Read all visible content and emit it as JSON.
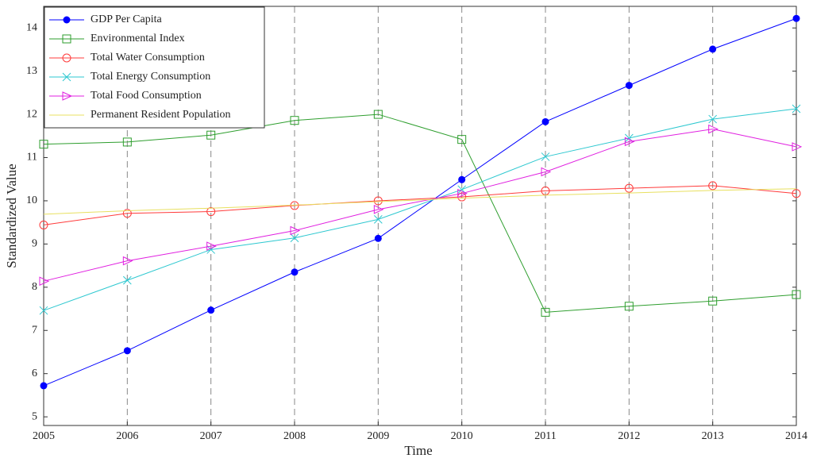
{
  "chart_data": {
    "type": "line",
    "x_label": "Time",
    "y_label": "Standardized Value",
    "x": [
      2005,
      2006,
      2007,
      2008,
      2009,
      2010,
      2011,
      2012,
      2013,
      2014
    ],
    "xlim": [
      2005,
      2014
    ],
    "xticks": [
      2005,
      2006,
      2007,
      2008,
      2009,
      2010,
      2011,
      2012,
      2013,
      2014
    ],
    "ylim": [
      4.8,
      14.5
    ],
    "yticks": [
      5,
      6,
      7,
      8,
      9,
      10,
      11,
      12,
      13,
      14
    ],
    "grid": true,
    "legend": "upper left",
    "series": [
      {
        "name": "GDP Per Capita",
        "color": "#0000ff",
        "marker": "filled-circle",
        "values": [
          5.72,
          6.53,
          7.47,
          8.35,
          9.13,
          10.49,
          11.83,
          12.67,
          13.51,
          14.22
        ]
      },
      {
        "name": "Environmental Index",
        "color": "#2e9e2e",
        "marker": "square",
        "values": [
          11.31,
          11.36,
          11.52,
          11.86,
          12.0,
          11.42,
          7.42,
          7.56,
          7.68,
          7.83
        ]
      },
      {
        "name": "Total Water Consumption",
        "color": "#ff3b3b",
        "marker": "circle",
        "values": [
          9.44,
          9.71,
          9.75,
          9.89,
          10.0,
          10.09,
          10.23,
          10.29,
          10.35,
          10.17
        ]
      },
      {
        "name": "Total Energy Consumption",
        "color": "#2ec8d0",
        "marker": "x",
        "values": [
          7.46,
          8.16,
          8.87,
          9.14,
          9.57,
          10.26,
          11.02,
          11.45,
          11.89,
          12.13
        ]
      },
      {
        "name": "Total Food Consumption",
        "color": "#e020e0",
        "marker": "triangle-right",
        "values": [
          8.14,
          8.61,
          8.95,
          9.31,
          9.8,
          10.17,
          10.67,
          11.37,
          11.66,
          11.25
        ]
      },
      {
        "name": "Permanent Resident Population",
        "color": "#e8e060",
        "marker": "none",
        "values": [
          9.69,
          9.77,
          9.83,
          9.9,
          9.98,
          10.06,
          10.13,
          10.18,
          10.24,
          10.28
        ]
      }
    ]
  }
}
